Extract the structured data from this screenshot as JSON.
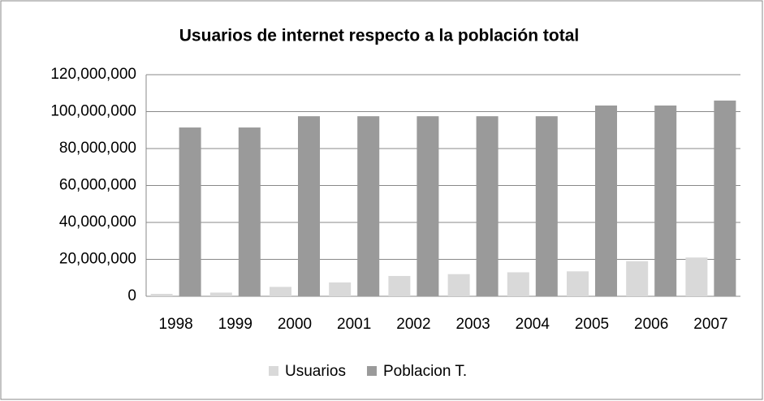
{
  "chart_data": {
    "type": "bar",
    "title": "Usuarios de internet respecto a la población total",
    "categories": [
      "1998",
      "1999",
      "2000",
      "2001",
      "2002",
      "2003",
      "2004",
      "2005",
      "2006",
      "2007"
    ],
    "series": [
      {
        "name": "Usuarios",
        "color": "#d9d9d9",
        "values": [
          1300000,
          2000000,
          5100000,
          7500000,
          11000000,
          12000000,
          13000000,
          13500000,
          19000000,
          21000000
        ]
      },
      {
        "name": "Poblacion T.",
        "color": "#9a9a9a",
        "values": [
          91400000,
          91400000,
          97500000,
          97500000,
          97500000,
          97500000,
          97500000,
          103300000,
          103300000,
          106000000
        ]
      }
    ],
    "ylim": [
      0,
      120000000
    ],
    "yticks": [
      0,
      {
        "value": 20000000,
        "label": "20,000,000"
      },
      {
        "value": 40000000,
        "label": "40,000,000"
      },
      {
        "value": 60000000,
        "label": "60,000,000"
      },
      {
        "value": 80000000,
        "label": "80,000,000"
      },
      {
        "value": 100000000,
        "label": "100,000,000"
      },
      {
        "value": 120000000,
        "label": "120,000,000"
      }
    ],
    "grid": true,
    "legend": "bottom"
  }
}
